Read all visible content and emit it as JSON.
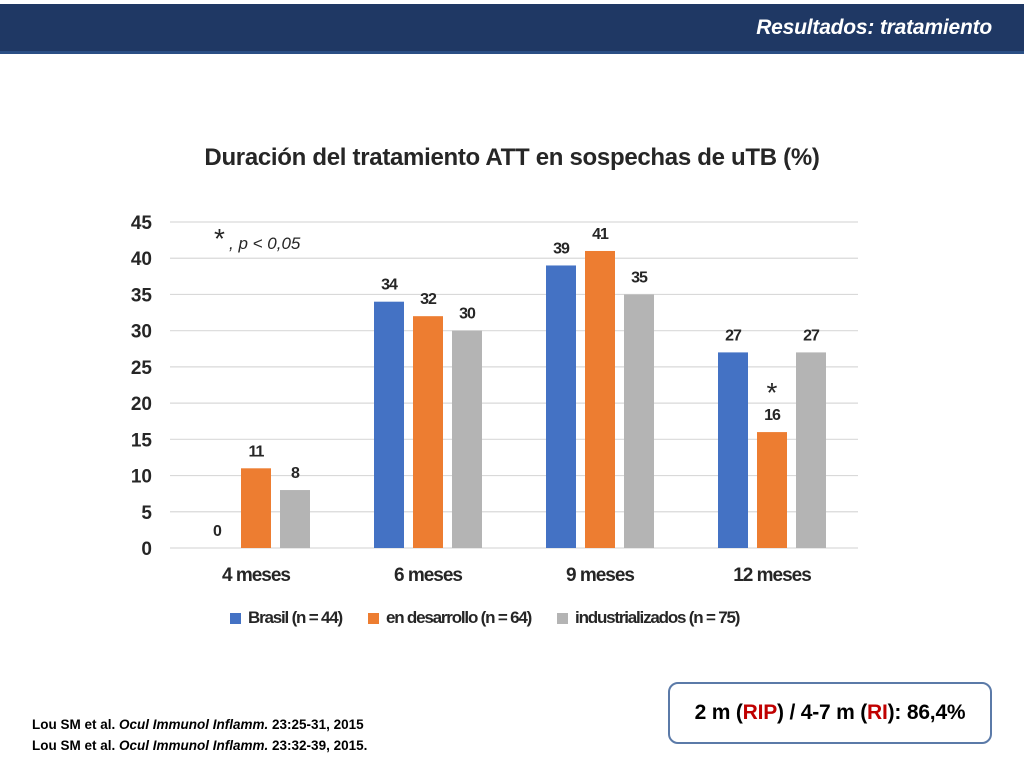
{
  "header": {
    "title": "Resultados: tratamiento"
  },
  "chart_data": {
    "type": "bar",
    "title": "Duración del tratamiento ATT en sospechas de uTB (%)",
    "categories": [
      "4 meses",
      "6 meses",
      "9 meses",
      "12 meses"
    ],
    "series": [
      {
        "name": "Brasil (n = 44)",
        "color": "#4472c4",
        "values": [
          0,
          34,
          39,
          27
        ]
      },
      {
        "name": "en desarrollo (n = 64)",
        "color": "#ed7d31",
        "values": [
          11,
          32,
          41,
          16
        ]
      },
      {
        "name": "industrializados (n = 75)",
        "color": "#b4b4b4",
        "values": [
          8,
          30,
          35,
          27
        ]
      }
    ],
    "ylim": [
      0,
      45
    ],
    "yticks": [
      0,
      5,
      10,
      15,
      20,
      25,
      30,
      35,
      40,
      45
    ],
    "grid": true,
    "legend_position": "bottom",
    "annotations": {
      "significance_note": {
        "symbol": "*",
        "text": ", p < 0,05"
      },
      "significant_marker": {
        "symbol": "*",
        "category": "12 meses",
        "series": "en desarrollo (n = 64)"
      }
    }
  },
  "footer": {
    "references": [
      {
        "prefix": "Lou SM  et al. ",
        "journal": "Ocul Immunol Inflamm.",
        "suffix": " 23:25-31, 2015"
      },
      {
        "prefix": "Lou SM  et al. ",
        "journal": "Ocul Immunol Inflamm.",
        "suffix": " 23:32-39, 2015."
      }
    ],
    "result": {
      "part1": "2 m (",
      "rip": "RIP",
      "part2": ") / 4-7 m (",
      "ri": "RI",
      "part3": "): 86,4%"
    }
  }
}
